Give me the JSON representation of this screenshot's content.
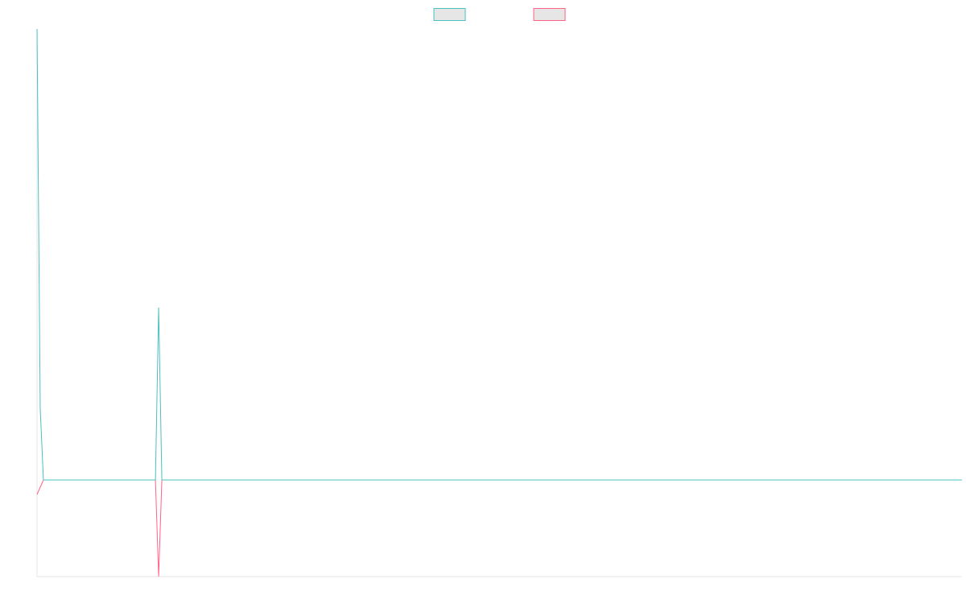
{
  "chart_data": {
    "type": "line",
    "x": [
      0,
      1,
      2,
      37,
      38,
      39,
      289
    ],
    "xlim": [
      0,
      289
    ],
    "ylim": [
      -120,
      560
    ],
    "series": [
      {
        "color": "#4bc0c0",
        "values": [
          560,
          89,
          0,
          0,
          214,
          0,
          0
        ]
      },
      {
        "color": "#ff6384",
        "values": [
          -18,
          -9,
          0,
          0,
          -120,
          0,
          0
        ]
      }
    ],
    "legend": "top"
  }
}
